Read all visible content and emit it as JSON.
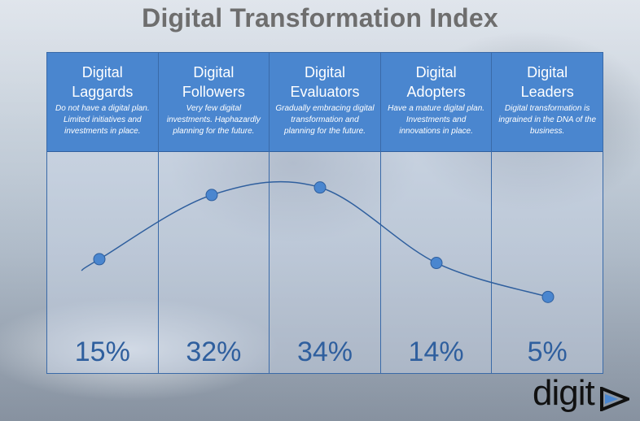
{
  "title": "Digital Transformation Index",
  "logo_text": "digit",
  "logo_mark": "triangle-play-icon",
  "colors": {
    "header_bg": "#4a86cf",
    "percent_text": "#2f5f9e",
    "line": "#2f5f9e",
    "point": "#4a86cf",
    "title_text": "#6e6e6e"
  },
  "columns": [
    {
      "name_line1": "Digital",
      "name_line2": "Laggards",
      "desc": "Do not have a digital plan. Limited initiatives and investments in place.",
      "percent": "15%"
    },
    {
      "name_line1": "Digital",
      "name_line2": "Followers",
      "desc": "Very few digital investments. Haphazardly planning for the future.",
      "percent": "32%"
    },
    {
      "name_line1": "Digital",
      "name_line2": "Evaluators",
      "desc": "Gradually embracing digital transformation and planning for the future.",
      "percent": "34%"
    },
    {
      "name_line1": "Digital",
      "name_line2": "Adopters",
      "desc": "Have a mature digital plan. Investments and innovations in place.",
      "percent": "14%"
    },
    {
      "name_line1": "Digital",
      "name_line2": "Leaders",
      "desc": "Digital transformation is ingrained in the DNA of the business.",
      "percent": "5%"
    }
  ],
  "chart_data": {
    "type": "line",
    "title": "Digital Transformation Index",
    "categories": [
      "Digital Laggards",
      "Digital Followers",
      "Digital Evaluators",
      "Digital Adopters",
      "Digital Leaders"
    ],
    "values": [
      15,
      32,
      34,
      14,
      5
    ],
    "unit": "%",
    "grid": false,
    "legend": "none"
  }
}
